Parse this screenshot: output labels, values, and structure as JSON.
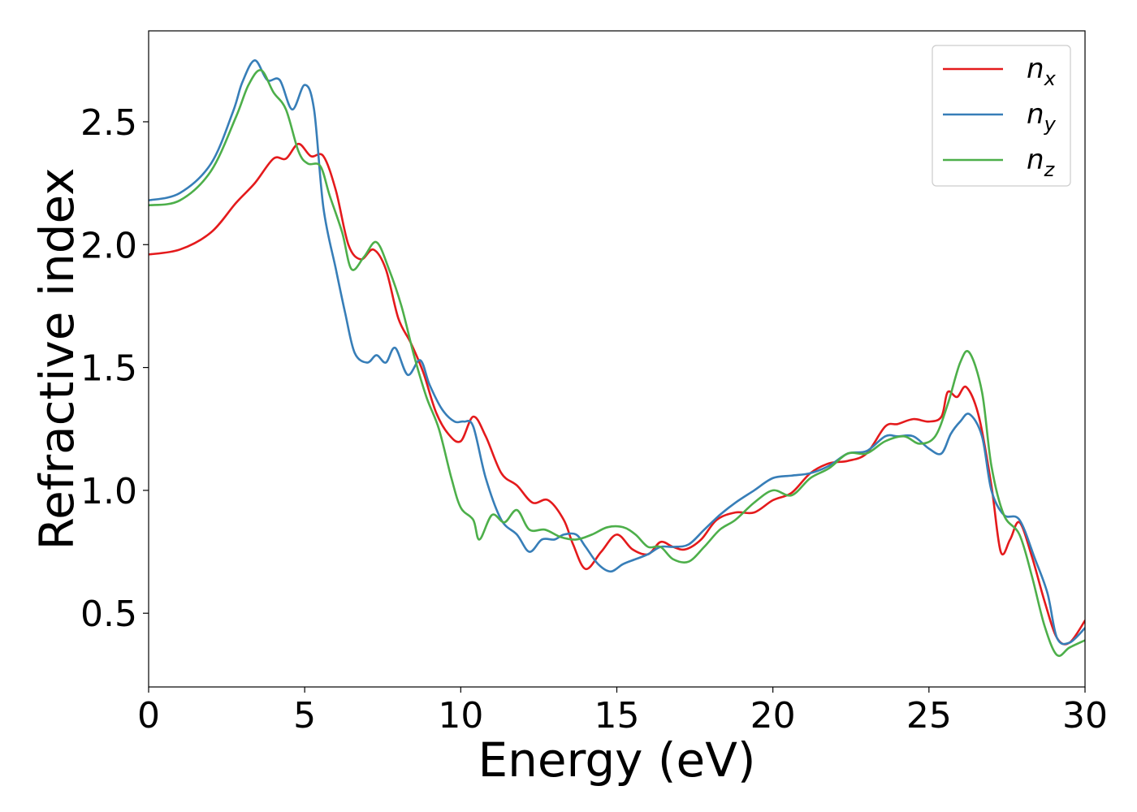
{
  "chart_data": {
    "type": "line",
    "title": "",
    "xlabel": "Energy (eV)",
    "ylabel": "Refractive index",
    "xlim": [
      0,
      30
    ],
    "ylim": [
      0.2,
      2.87
    ],
    "xticks": [
      0,
      5,
      10,
      15,
      20,
      25,
      30
    ],
    "xtick_labels": [
      "0",
      "5",
      "10",
      "15",
      "20",
      "25",
      "30"
    ],
    "yticks": [
      0.5,
      1.0,
      1.5,
      2.0,
      2.5
    ],
    "ytick_labels": [
      "0.5",
      "1.0",
      "1.5",
      "2.0",
      "2.5"
    ],
    "grid": false,
    "legend_position": "top-right",
    "series": [
      {
        "name": "n",
        "subscript": "x",
        "color": "#e41a1c",
        "points": [
          [
            0,
            1.96
          ],
          [
            1,
            1.98
          ],
          [
            2,
            2.05
          ],
          [
            2.8,
            2.17
          ],
          [
            3.4,
            2.25
          ],
          [
            4,
            2.35
          ],
          [
            4.4,
            2.35
          ],
          [
            4.8,
            2.41
          ],
          [
            5.2,
            2.36
          ],
          [
            5.6,
            2.36
          ],
          [
            6,
            2.22
          ],
          [
            6.4,
            2.0
          ],
          [
            6.8,
            1.94
          ],
          [
            7.2,
            1.98
          ],
          [
            7.6,
            1.9
          ],
          [
            8,
            1.7
          ],
          [
            8.4,
            1.6
          ],
          [
            8.8,
            1.48
          ],
          [
            9.2,
            1.32
          ],
          [
            9.6,
            1.23
          ],
          [
            10,
            1.2
          ],
          [
            10.4,
            1.3
          ],
          [
            10.8,
            1.22
          ],
          [
            11.3,
            1.07
          ],
          [
            11.8,
            1.02
          ],
          [
            12.3,
            0.95
          ],
          [
            12.8,
            0.96
          ],
          [
            13.3,
            0.88
          ],
          [
            13.6,
            0.78
          ],
          [
            14,
            0.68
          ],
          [
            14.5,
            0.75
          ],
          [
            15,
            0.82
          ],
          [
            15.5,
            0.76
          ],
          [
            16,
            0.74
          ],
          [
            16.4,
            0.79
          ],
          [
            16.8,
            0.77
          ],
          [
            17.2,
            0.76
          ],
          [
            17.7,
            0.8
          ],
          [
            18.2,
            0.88
          ],
          [
            18.8,
            0.91
          ],
          [
            19.4,
            0.91
          ],
          [
            20,
            0.96
          ],
          [
            20.6,
            0.99
          ],
          [
            21.2,
            1.07
          ],
          [
            21.8,
            1.11
          ],
          [
            22.4,
            1.12
          ],
          [
            23,
            1.15
          ],
          [
            23.6,
            1.26
          ],
          [
            24,
            1.27
          ],
          [
            24.5,
            1.29
          ],
          [
            25,
            1.28
          ],
          [
            25.4,
            1.3
          ],
          [
            25.6,
            1.4
          ],
          [
            25.9,
            1.38
          ],
          [
            26.2,
            1.42
          ],
          [
            26.6,
            1.3
          ],
          [
            27,
            1.02
          ],
          [
            27.3,
            0.75
          ],
          [
            27.6,
            0.8
          ],
          [
            27.9,
            0.87
          ],
          [
            28.3,
            0.73
          ],
          [
            28.7,
            0.55
          ],
          [
            29.1,
            0.4
          ],
          [
            29.5,
            0.38
          ],
          [
            30,
            0.47
          ]
        ]
      },
      {
        "name": "n",
        "subscript": "y",
        "color": "#377eb8",
        "points": [
          [
            0,
            2.18
          ],
          [
            1,
            2.21
          ],
          [
            2,
            2.33
          ],
          [
            2.7,
            2.54
          ],
          [
            3,
            2.66
          ],
          [
            3.4,
            2.75
          ],
          [
            3.8,
            2.67
          ],
          [
            4.2,
            2.67
          ],
          [
            4.6,
            2.55
          ],
          [
            5,
            2.65
          ],
          [
            5.3,
            2.55
          ],
          [
            5.6,
            2.15
          ],
          [
            6,
            1.9
          ],
          [
            6.3,
            1.72
          ],
          [
            6.6,
            1.56
          ],
          [
            7,
            1.52
          ],
          [
            7.3,
            1.55
          ],
          [
            7.6,
            1.52
          ],
          [
            7.9,
            1.58
          ],
          [
            8.3,
            1.47
          ],
          [
            8.7,
            1.53
          ],
          [
            9,
            1.43
          ],
          [
            9.4,
            1.33
          ],
          [
            9.8,
            1.28
          ],
          [
            10.1,
            1.28
          ],
          [
            10.4,
            1.26
          ],
          [
            10.8,
            1.05
          ],
          [
            11.3,
            0.88
          ],
          [
            11.8,
            0.82
          ],
          [
            12.2,
            0.75
          ],
          [
            12.6,
            0.8
          ],
          [
            13,
            0.8
          ],
          [
            13.3,
            0.82
          ],
          [
            13.7,
            0.82
          ],
          [
            14,
            0.77
          ],
          [
            14.4,
            0.7
          ],
          [
            14.8,
            0.67
          ],
          [
            15.2,
            0.7
          ],
          [
            15.6,
            0.72
          ],
          [
            16,
            0.74
          ],
          [
            16.4,
            0.77
          ],
          [
            16.8,
            0.77
          ],
          [
            17.3,
            0.78
          ],
          [
            17.8,
            0.84
          ],
          [
            18.3,
            0.9
          ],
          [
            18.8,
            0.95
          ],
          [
            19.4,
            1.0
          ],
          [
            20,
            1.05
          ],
          [
            20.6,
            1.06
          ],
          [
            21.2,
            1.07
          ],
          [
            21.8,
            1.1
          ],
          [
            22.4,
            1.15
          ],
          [
            23,
            1.16
          ],
          [
            23.6,
            1.22
          ],
          [
            24,
            1.22
          ],
          [
            24.5,
            1.22
          ],
          [
            25,
            1.17
          ],
          [
            25.4,
            1.15
          ],
          [
            25.7,
            1.23
          ],
          [
            26,
            1.28
          ],
          [
            26.3,
            1.31
          ],
          [
            26.7,
            1.22
          ],
          [
            27,
            1.0
          ],
          [
            27.4,
            0.9
          ],
          [
            27.9,
            0.88
          ],
          [
            28.4,
            0.72
          ],
          [
            28.8,
            0.58
          ],
          [
            29.1,
            0.4
          ],
          [
            29.5,
            0.38
          ],
          [
            30,
            0.44
          ]
        ]
      },
      {
        "name": "n",
        "subscript": "z",
        "color": "#4daf4a",
        "points": [
          [
            0,
            2.16
          ],
          [
            1,
            2.18
          ],
          [
            2,
            2.3
          ],
          [
            2.8,
            2.52
          ],
          [
            3.2,
            2.65
          ],
          [
            3.6,
            2.71
          ],
          [
            4,
            2.62
          ],
          [
            4.4,
            2.55
          ],
          [
            4.8,
            2.38
          ],
          [
            5.1,
            2.33
          ],
          [
            5.5,
            2.32
          ],
          [
            5.8,
            2.2
          ],
          [
            6.2,
            2.05
          ],
          [
            6.5,
            1.9
          ],
          [
            6.9,
            1.95
          ],
          [
            7.3,
            2.01
          ],
          [
            7.7,
            1.9
          ],
          [
            8.1,
            1.75
          ],
          [
            8.5,
            1.55
          ],
          [
            8.9,
            1.38
          ],
          [
            9.3,
            1.25
          ],
          [
            9.7,
            1.05
          ],
          [
            10,
            0.93
          ],
          [
            10.4,
            0.88
          ],
          [
            10.6,
            0.8
          ],
          [
            11,
            0.9
          ],
          [
            11.4,
            0.87
          ],
          [
            11.8,
            0.92
          ],
          [
            12.2,
            0.84
          ],
          [
            12.7,
            0.84
          ],
          [
            13.2,
            0.81
          ],
          [
            13.7,
            0.8
          ],
          [
            14.2,
            0.82
          ],
          [
            14.7,
            0.85
          ],
          [
            15.2,
            0.85
          ],
          [
            15.6,
            0.82
          ],
          [
            16,
            0.77
          ],
          [
            16.4,
            0.77
          ],
          [
            16.8,
            0.72
          ],
          [
            17.3,
            0.71
          ],
          [
            17.8,
            0.77
          ],
          [
            18.3,
            0.84
          ],
          [
            18.8,
            0.88
          ],
          [
            19.4,
            0.95
          ],
          [
            20,
            1.0
          ],
          [
            20.6,
            0.98
          ],
          [
            21.2,
            1.05
          ],
          [
            21.8,
            1.09
          ],
          [
            22.4,
            1.15
          ],
          [
            23,
            1.15
          ],
          [
            23.6,
            1.2
          ],
          [
            24.2,
            1.22
          ],
          [
            24.7,
            1.19
          ],
          [
            25.2,
            1.22
          ],
          [
            25.6,
            1.35
          ],
          [
            26,
            1.52
          ],
          [
            26.3,
            1.56
          ],
          [
            26.7,
            1.4
          ],
          [
            27,
            1.1
          ],
          [
            27.4,
            0.9
          ],
          [
            27.9,
            0.82
          ],
          [
            28.3,
            0.65
          ],
          [
            28.7,
            0.45
          ],
          [
            29.1,
            0.33
          ],
          [
            29.5,
            0.36
          ],
          [
            30,
            0.39
          ]
        ]
      }
    ]
  }
}
